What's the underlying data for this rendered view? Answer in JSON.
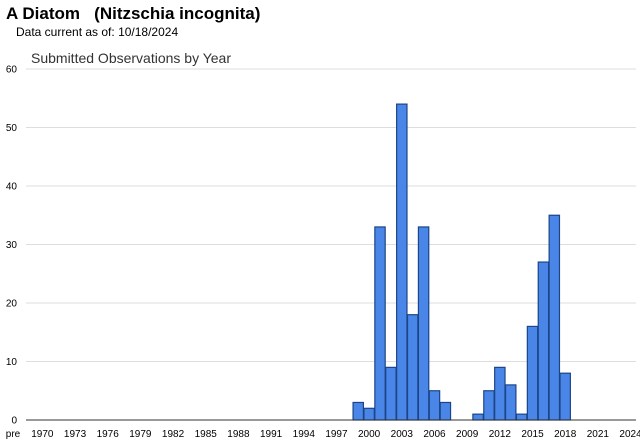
{
  "header": {
    "species_title": "A Diatom   (Nitzschia incognita)",
    "data_current_label": "Data current as of:",
    "data_current_date": "10/18/2024"
  },
  "chart_data": {
    "type": "bar",
    "title": "Submitted Observations by Year",
    "xlabel": "",
    "ylabel": "",
    "ylim": [
      0,
      60
    ],
    "yticks": [
      0,
      10,
      20,
      30,
      40,
      50,
      60
    ],
    "grid": true,
    "legend": "none",
    "bar_color": "#4a86e8",
    "bar_edge_color": "#1c4587",
    "categories": [
      "pre",
      "1970",
      "1971",
      "1972",
      "1973",
      "1974",
      "1975",
      "1976",
      "1977",
      "1978",
      "1979",
      "1980",
      "1981",
      "1982",
      "1983",
      "1984",
      "1985",
      "1986",
      "1987",
      "1988",
      "1989",
      "1990",
      "1991",
      "1992",
      "1993",
      "1994",
      "1995",
      "1996",
      "1997",
      "1998",
      "1999",
      "2000",
      "2001",
      "2002",
      "2003",
      "2004",
      "2005",
      "2006",
      "2007",
      "2008",
      "2009",
      "2010",
      "2011",
      "2012",
      "2013",
      "2014",
      "2015",
      "2016",
      "2017",
      "2018",
      "2019",
      "2020",
      "2021",
      "2022",
      "2023",
      "2024"
    ],
    "values": [
      0,
      0,
      0,
      0,
      0,
      0,
      0,
      0,
      0,
      0,
      0,
      0,
      0,
      0,
      0,
      0,
      0,
      0,
      0,
      0,
      0,
      0,
      0,
      0,
      0,
      0,
      0,
      0,
      0,
      0,
      3,
      2,
      33,
      9,
      54,
      18,
      33,
      5,
      3,
      0,
      0,
      1,
      5,
      9,
      6,
      1,
      16,
      27,
      35,
      8,
      0,
      0,
      0,
      0,
      0,
      0
    ],
    "x_tick_labels": [
      "pre",
      "1970",
      "1973",
      "1976",
      "1979",
      "1982",
      "1985",
      "1988",
      "1991",
      "1994",
      "1997",
      "2000",
      "2003",
      "2006",
      "2009",
      "2012",
      "2015",
      "2018",
      "2021",
      "2024"
    ]
  }
}
